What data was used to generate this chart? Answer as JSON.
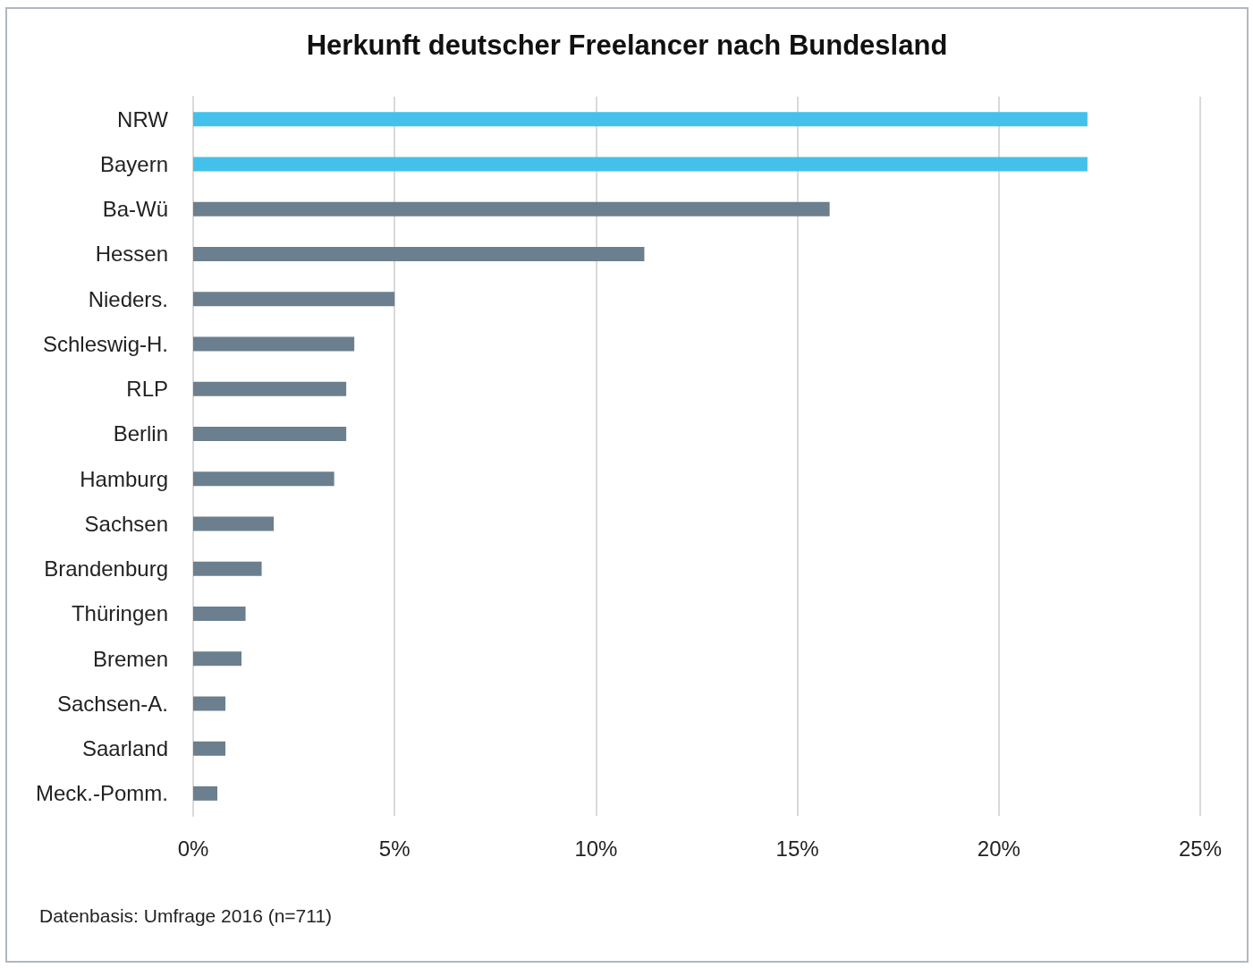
{
  "chart_data": {
    "type": "bar",
    "orientation": "horizontal",
    "title": "Herkunft deutscher Freelancer nach Bundesland",
    "categories": [
      "NRW",
      "Bayern",
      "Ba-Wü",
      "Hessen",
      "Nieders.",
      "Schleswig-H.",
      "RLP",
      "Berlin",
      "Hamburg",
      "Sachsen",
      "Brandenburg",
      "Thüringen",
      "Bremen",
      "Sachsen-A.",
      "Saarland",
      "Meck.-Pomm."
    ],
    "values": [
      22.2,
      22.2,
      15.8,
      11.2,
      5.0,
      4.0,
      3.8,
      3.8,
      3.5,
      2.0,
      1.7,
      1.3,
      1.2,
      0.8,
      0.8,
      0.6
    ],
    "colors": [
      "#44c1eb",
      "#44c1eb",
      "#6b7f8e",
      "#6b7f8e",
      "#6b7f8e",
      "#6b7f8e",
      "#6b7f8e",
      "#6b7f8e",
      "#6b7f8e",
      "#6b7f8e",
      "#6b7f8e",
      "#6b7f8e",
      "#6b7f8e",
      "#6b7f8e",
      "#6b7f8e",
      "#6b7f8e"
    ],
    "xlim": [
      0,
      25
    ],
    "xticks": [
      {
        "value": 0,
        "label": "0%"
      },
      {
        "value": 5,
        "label": "5%"
      },
      {
        "value": 10,
        "label": "10%"
      },
      {
        "value": 15,
        "label": "15%"
      },
      {
        "value": 20,
        "label": "20%"
      },
      {
        "value": 25,
        "label": "25%"
      }
    ],
    "grid": "x",
    "annotations": [
      "Datenbasis: Umfrage 2016 (n=711)"
    ]
  }
}
